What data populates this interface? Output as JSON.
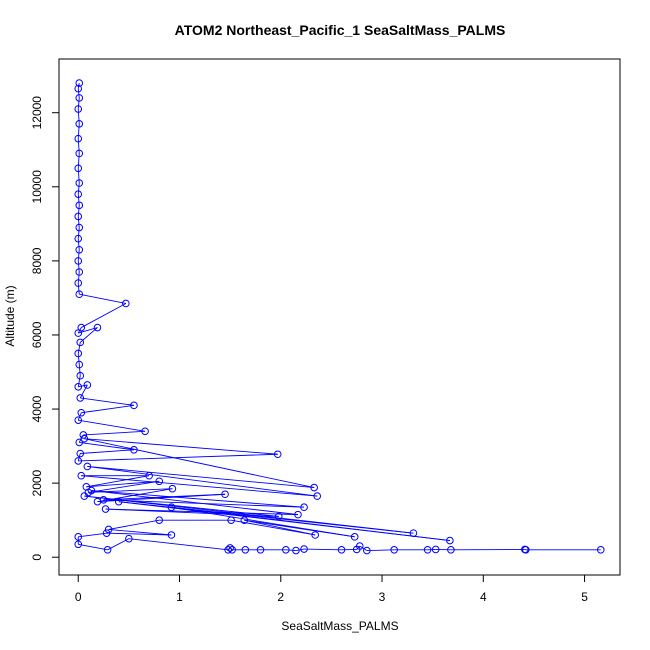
{
  "chart_data": {
    "type": "line",
    "title": "ATOM2 Northeast_Pacific_1 SeaSaltMass_PALMS",
    "xlabel": "SeaSaltMass_PALMS",
    "ylabel": "Altitude (m)",
    "xlim": [
      -0.19,
      5.35
    ],
    "ylim": [
      -480,
      13450
    ],
    "x_ticks": [
      0,
      1,
      2,
      3,
      4,
      5
    ],
    "y_ticks": [
      0,
      2000,
      4000,
      6000,
      8000,
      10000,
      12000
    ],
    "series_color": "#0000ff",
    "marker": "open-circle",
    "points": [
      [
        0.01,
        12800
      ],
      [
        0.0,
        12650
      ],
      [
        0.01,
        12400
      ],
      [
        0.0,
        12100
      ],
      [
        0.01,
        11700
      ],
      [
        0.0,
        11300
      ],
      [
        0.01,
        10900
      ],
      [
        0.0,
        10500
      ],
      [
        0.01,
        10100
      ],
      [
        0.0,
        9800
      ],
      [
        0.01,
        9500
      ],
      [
        0.0,
        9200
      ],
      [
        0.01,
        8900
      ],
      [
        0.0,
        8600
      ],
      [
        0.01,
        8300
      ],
      [
        0.0,
        8000
      ],
      [
        0.01,
        7700
      ],
      [
        0.0,
        7400
      ],
      [
        0.01,
        7100
      ],
      [
        0.47,
        6850
      ],
      [
        0.03,
        6200
      ],
      [
        0.0,
        6050
      ],
      [
        0.19,
        6200
      ],
      [
        0.02,
        5800
      ],
      [
        0.0,
        5500
      ],
      [
        0.01,
        5200
      ],
      [
        0.02,
        4900
      ],
      [
        0.0,
        4600
      ],
      [
        0.09,
        4650
      ],
      [
        0.02,
        4300
      ],
      [
        0.55,
        4100
      ],
      [
        0.03,
        3900
      ],
      [
        0.0,
        3700
      ],
      [
        0.66,
        3400
      ],
      [
        0.05,
        3300
      ],
      [
        0.01,
        3100
      ],
      [
        0.55,
        2900
      ],
      [
        0.02,
        2800
      ],
      [
        0.0,
        2600
      ],
      [
        1.97,
        2780
      ],
      [
        0.06,
        3200
      ],
      [
        2.33,
        1880
      ],
      [
        0.09,
        2450
      ],
      [
        2.36,
        1650
      ],
      [
        0.03,
        2200
      ],
      [
        0.7,
        2200
      ],
      [
        0.08,
        1900
      ],
      [
        0.8,
        2050
      ],
      [
        0.1,
        1750
      ],
      [
        0.93,
        1850
      ],
      [
        0.19,
        1500
      ],
      [
        1.45,
        1700
      ],
      [
        0.25,
        1550
      ],
      [
        2.23,
        1350
      ],
      [
        0.13,
        1800
      ],
      [
        2.17,
        1150
      ],
      [
        0.27,
        1300
      ],
      [
        1.98,
        1100
      ],
      [
        0.06,
        1650
      ],
      [
        3.31,
        650
      ],
      [
        0.4,
        1500
      ],
      [
        3.67,
        450
      ],
      [
        0.92,
        1350
      ],
      [
        2.73,
        550
      ],
      [
        1.64,
        1000
      ],
      [
        2.34,
        600
      ],
      [
        1.51,
        1000
      ],
      [
        0.8,
        1000
      ],
      [
        0.3,
        750
      ],
      [
        0.92,
        600
      ],
      [
        0.28,
        650
      ],
      [
        0.0,
        550
      ],
      [
        0.0,
        350
      ],
      [
        0.29,
        200
      ],
      [
        0.5,
        500
      ],
      [
        1.48,
        200
      ],
      [
        1.5,
        250
      ],
      [
        1.52,
        200
      ],
      [
        1.65,
        200
      ],
      [
        1.8,
        200
      ],
      [
        2.05,
        200
      ],
      [
        2.15,
        180
      ],
      [
        2.23,
        220
      ],
      [
        2.6,
        200
      ],
      [
        2.75,
        210
      ],
      [
        2.78,
        300
      ],
      [
        2.85,
        180
      ],
      [
        3.12,
        200
      ],
      [
        3.45,
        200
      ],
      [
        3.53,
        210
      ],
      [
        3.68,
        200
      ],
      [
        4.41,
        210
      ],
      [
        4.42,
        200
      ],
      [
        5.16,
        200
      ]
    ]
  }
}
